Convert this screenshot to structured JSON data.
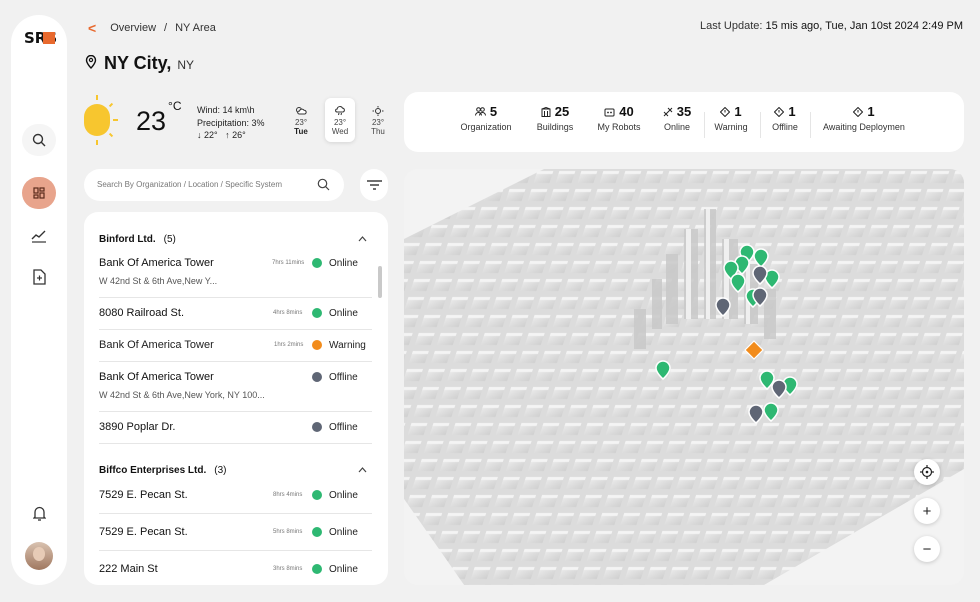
{
  "brand": {
    "logo_text": "SRS"
  },
  "breadcrumb": {
    "back": "<",
    "items": [
      "Overview",
      "/",
      "NY Area"
    ]
  },
  "last_update": {
    "label": "Last Update:",
    "value": "15 mis ago, Tue, Jan 10st 2024 2:49 PM"
  },
  "city": {
    "name": "NY City,",
    "state": "NY"
  },
  "weather": {
    "temp": "23",
    "unit": "°C",
    "wind": "Wind: 14 km\\h",
    "precip": "Precipitation: 3%",
    "low": "22°",
    "high": "26°",
    "days": [
      {
        "temp": "23°",
        "name": "Tue"
      },
      {
        "temp": "23°",
        "name": "Wed"
      },
      {
        "temp": "23°",
        "name": "Thu"
      }
    ]
  },
  "stats": [
    {
      "value": "5",
      "label": "Organization",
      "icon": "users-icon"
    },
    {
      "value": "25",
      "label": "Buildings",
      "icon": "building-icon"
    },
    {
      "value": "40",
      "label": "My Robots",
      "icon": "robot-icon"
    },
    {
      "value": "35",
      "label": "Online",
      "icon": "signal-icon"
    },
    {
      "value": "1",
      "label": "Warning",
      "icon": "diamond-icon"
    },
    {
      "value": "1",
      "label": "Offline",
      "icon": "diamond-icon"
    },
    {
      "value": "1",
      "label": "Awaiting Deploymen",
      "icon": "diamond-icon"
    }
  ],
  "search": {
    "placeholder": "Search By Organization  / Location / Specific System"
  },
  "groups": [
    {
      "name": "Binford Ltd.",
      "count": "(5)",
      "caret": "^"
    },
    {
      "name": "Biffco Enterprises Ltd.",
      "count": "(3)",
      "caret": "^"
    }
  ],
  "items": [
    {
      "title": "Bank Of America Tower",
      "sub": "W 42nd St & 6th Ave,New Y...",
      "time": "7hrs 11mins",
      "status": "Online"
    },
    {
      "title": "8080 Railroad St.",
      "sub": "",
      "time": "4hrs 8mins",
      "status": "Online"
    },
    {
      "title": "Bank Of America Tower",
      "sub": "",
      "time": "1hrs 2mins",
      "status": "Warning"
    },
    {
      "title": "Bank Of America Tower",
      "sub": "W 42nd St & 6th Ave,New York, NY 100...",
      "time": "",
      "status": "Offline"
    },
    {
      "title": "3890 Poplar Dr.",
      "sub": "",
      "time": "",
      "status": "Offline"
    },
    {
      "title": "7529 E. Pecan St.",
      "sub": "",
      "time": "8hrs 4mins",
      "status": "Online"
    },
    {
      "title": "7529 E. Pecan St.",
      "sub": "",
      "time": "5hrs 8mins",
      "status": "Online"
    },
    {
      "title": "222 Main St",
      "sub": "",
      "time": "3hrs 8mins",
      "status": "Online"
    }
  ],
  "colors": {
    "accent": "#e8692e",
    "online": "#2eb872",
    "warning": "#f28c1c",
    "offline": "#5f6675"
  },
  "map_controls": {
    "locate": "crosshair-icon",
    "zoom_in": "+",
    "zoom_out": "−"
  }
}
